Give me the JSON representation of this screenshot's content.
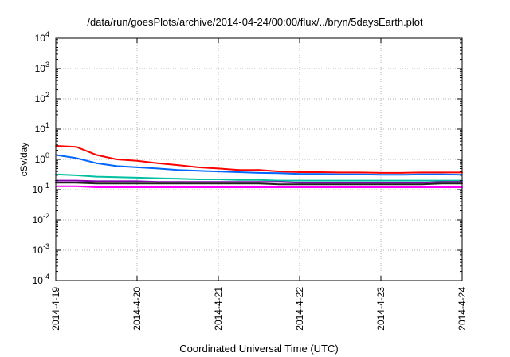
{
  "chart_data": {
    "type": "line",
    "title": "/data/run/goesPlots/archive/2014-04-24/00:00/flux/../bryn/5daysEarth.plot",
    "xlabel": "Coordinated Universal Time (UTC)",
    "ylabel": "cSv/day",
    "yscale": "log",
    "ylim": [
      0.0001,
      10000
    ],
    "yticks": [
      {
        "mant": "10",
        "exp": "-4"
      },
      {
        "mant": "10",
        "exp": "-3"
      },
      {
        "mant": "10",
        "exp": "-2"
      },
      {
        "mant": "10",
        "exp": "-1"
      },
      {
        "mant": "10",
        "exp": "0"
      },
      {
        "mant": "10",
        "exp": "1"
      },
      {
        "mant": "10",
        "exp": "2"
      },
      {
        "mant": "10",
        "exp": "3"
      },
      {
        "mant": "10",
        "exp": "4"
      }
    ],
    "xlim": [
      "2014-04-19",
      "2014-04-24"
    ],
    "xticks": [
      "2014-4-19",
      "2014-4-20",
      "2014-4-21",
      "2014-4-22",
      "2014-4-23",
      "2014-4-24"
    ],
    "grid": true,
    "legend": "none",
    "x": [
      "2014-04-19 00:00",
      "2014-04-19 06:00",
      "2014-04-19 12:00",
      "2014-04-19 18:00",
      "2014-04-20 00:00",
      "2014-04-20 06:00",
      "2014-04-20 12:00",
      "2014-04-20 18:00",
      "2014-04-21 00:00",
      "2014-04-21 06:00",
      "2014-04-21 12:00",
      "2014-04-21 18:00",
      "2014-04-22 00:00",
      "2014-04-22 06:00",
      "2014-04-22 12:00",
      "2014-04-22 18:00",
      "2014-04-23 00:00",
      "2014-04-23 06:00",
      "2014-04-23 12:00",
      "2014-04-23 18:00",
      "2014-04-24 00:00"
    ],
    "series": [
      {
        "color": "#ff0000",
        "values": [
          2.8,
          2.6,
          1.4,
          1.0,
          0.9,
          0.75,
          0.65,
          0.55,
          0.5,
          0.45,
          0.45,
          0.4,
          0.38,
          0.38,
          0.37,
          0.37,
          0.36,
          0.36,
          0.37,
          0.37,
          0.37
        ]
      },
      {
        "color": "#0066ff",
        "values": [
          1.4,
          1.1,
          0.75,
          0.6,
          0.55,
          0.5,
          0.45,
          0.42,
          0.4,
          0.38,
          0.36,
          0.35,
          0.33,
          0.33,
          0.32,
          0.32,
          0.31,
          0.31,
          0.32,
          0.32,
          0.31
        ]
      },
      {
        "color": "#00c0a0",
        "values": [
          0.32,
          0.3,
          0.27,
          0.26,
          0.25,
          0.24,
          0.23,
          0.22,
          0.22,
          0.21,
          0.21,
          0.2,
          0.2,
          0.2,
          0.2,
          0.2,
          0.2,
          0.2,
          0.2,
          0.2,
          0.2
        ]
      },
      {
        "color": "#8800aa",
        "values": [
          0.2,
          0.2,
          0.19,
          0.19,
          0.19,
          0.18,
          0.18,
          0.18,
          0.18,
          0.18,
          0.18,
          0.18,
          0.17,
          0.17,
          0.17,
          0.17,
          0.17,
          0.17,
          0.17,
          0.18,
          0.18
        ]
      },
      {
        "color": "#222222",
        "values": [
          0.17,
          0.17,
          0.16,
          0.16,
          0.16,
          0.16,
          0.16,
          0.16,
          0.16,
          0.16,
          0.16,
          0.15,
          0.15,
          0.15,
          0.15,
          0.15,
          0.15,
          0.15,
          0.15,
          0.16,
          0.16
        ]
      },
      {
        "color": "#ff00ff",
        "values": [
          0.13,
          0.13,
          0.12,
          0.12,
          0.12,
          0.12,
          0.12,
          0.12,
          0.12,
          0.12,
          0.12,
          0.12,
          0.12,
          0.12,
          0.12,
          0.12,
          0.12,
          0.12,
          0.12,
          0.12,
          0.12
        ]
      }
    ]
  }
}
